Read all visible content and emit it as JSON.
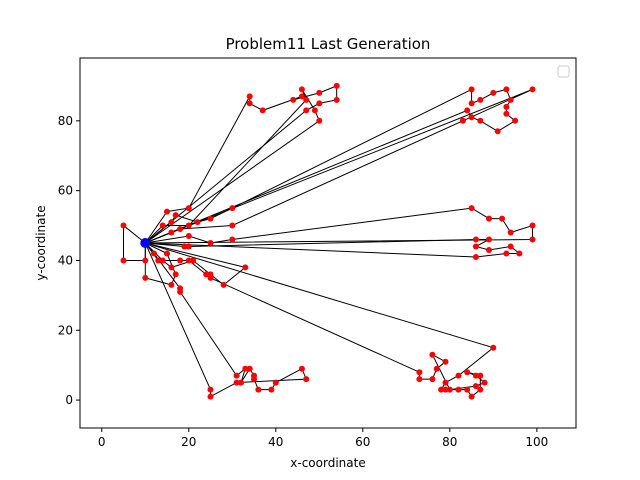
{
  "chart_data": {
    "type": "line",
    "title": "Problem11 Last Generation",
    "xlabel": "x-coordinate",
    "ylabel": "y-coordinate",
    "xlim": [
      -5,
      109
    ],
    "ylim": [
      -8,
      98
    ],
    "xticks": [
      0,
      20,
      40,
      60,
      80,
      100
    ],
    "yticks": [
      0,
      20,
      40,
      60,
      80
    ],
    "xtick_labels": [
      "0",
      "20",
      "40",
      "60",
      "80",
      "100"
    ],
    "ytick_labels": [
      "0",
      "20",
      "40",
      "60",
      "80"
    ],
    "grid": false,
    "legend": "top-right (empty)",
    "depot": {
      "x": 10,
      "y": 45,
      "color": "#0000ff"
    },
    "route_color": "#000000",
    "customer_color": "#ff0000",
    "routes": [
      [
        [
          10,
          45
        ],
        [
          15,
          54
        ],
        [
          20,
          55
        ],
        [
          34,
          87
        ],
        [
          34,
          85
        ],
        [
          37,
          83
        ],
        [
          46,
          87
        ],
        [
          44,
          86
        ],
        [
          50,
          88
        ],
        [
          54,
          90
        ],
        [
          54,
          86
        ],
        [
          50,
          85
        ],
        [
          47,
          83
        ],
        [
          10,
          45
        ]
      ],
      [
        [
          10,
          45
        ],
        [
          14,
          50
        ],
        [
          20,
          50
        ],
        [
          47,
          86
        ],
        [
          46,
          89
        ],
        [
          49,
          83
        ],
        [
          50,
          80
        ],
        [
          10,
          45
        ]
      ],
      [
        [
          10,
          45
        ],
        [
          16,
          51
        ],
        [
          17,
          53
        ],
        [
          22,
          51
        ],
        [
          25,
          52
        ],
        [
          30,
          55
        ],
        [
          85,
          89
        ],
        [
          85,
          85
        ],
        [
          87,
          86
        ],
        [
          90,
          88
        ],
        [
          93,
          89
        ],
        [
          94,
          86
        ],
        [
          93,
          84
        ],
        [
          93,
          82
        ],
        [
          95,
          80
        ],
        [
          91,
          77
        ],
        [
          87,
          80
        ],
        [
          85,
          81
        ],
        [
          84,
          83
        ],
        [
          10,
          45
        ]
      ],
      [
        [
          10,
          45
        ],
        [
          16,
          48
        ],
        [
          18,
          49
        ],
        [
          30,
          50
        ],
        [
          83,
          80
        ],
        [
          99,
          89
        ],
        [
          10,
          45
        ]
      ],
      [
        [
          10,
          45
        ],
        [
          20,
          47
        ],
        [
          25,
          45
        ],
        [
          30,
          46
        ],
        [
          85,
          55
        ],
        [
          89,
          52
        ],
        [
          92,
          52
        ],
        [
          94,
          48
        ],
        [
          99,
          50
        ],
        [
          99,
          46
        ],
        [
          10,
          45
        ]
      ],
      [
        [
          10,
          45
        ],
        [
          19,
          44
        ],
        [
          20,
          44
        ],
        [
          86,
          46
        ],
        [
          89,
          46
        ],
        [
          86,
          44
        ],
        [
          89,
          43
        ],
        [
          94,
          44
        ],
        [
          96,
          42
        ],
        [
          93,
          42
        ],
        [
          86,
          41
        ],
        [
          10,
          45
        ]
      ],
      [
        [
          10,
          45
        ],
        [
          14,
          40
        ],
        [
          16,
          38
        ],
        [
          21,
          40
        ],
        [
          25,
          36
        ],
        [
          28,
          33
        ],
        [
          33,
          38
        ],
        [
          10,
          45
        ]
      ],
      [
        [
          10,
          45
        ],
        [
          13,
          40
        ],
        [
          18,
          40
        ],
        [
          20,
          40
        ],
        [
          24,
          36
        ],
        [
          25,
          35
        ],
        [
          73,
          8
        ],
        [
          73,
          6
        ],
        [
          76,
          6
        ],
        [
          77,
          9
        ],
        [
          79,
          11
        ],
        [
          76,
          13
        ],
        [
          80,
          3
        ],
        [
          86,
          4
        ],
        [
          88,
          5
        ],
        [
          86,
          7
        ],
        [
          84,
          8
        ],
        [
          87,
          7
        ],
        [
          87,
          3
        ],
        [
          85,
          1
        ],
        [
          84,
          3
        ],
        [
          82,
          3
        ],
        [
          79,
          3
        ],
        [
          78,
          3
        ],
        [
          79,
          5
        ],
        [
          82,
          7
        ],
        [
          90,
          15
        ],
        [
          10,
          45
        ]
      ],
      [
        [
          10,
          45
        ],
        [
          12,
          42
        ],
        [
          18,
          32
        ],
        [
          18,
          31
        ],
        [
          31,
          7
        ],
        [
          33,
          9
        ],
        [
          32,
          5
        ],
        [
          34,
          9
        ],
        [
          35,
          7
        ],
        [
          35,
          6
        ],
        [
          36,
          3
        ],
        [
          39,
          3
        ],
        [
          40,
          5
        ],
        [
          46,
          9
        ],
        [
          47,
          6
        ],
        [
          31,
          5
        ],
        [
          25,
          1
        ],
        [
          25,
          3
        ],
        [
          10,
          45
        ]
      ],
      [
        [
          10,
          45
        ],
        [
          15,
          42
        ],
        [
          17,
          36
        ],
        [
          16,
          33
        ],
        [
          10,
          35
        ],
        [
          10,
          45
        ]
      ],
      [
        [
          10,
          45
        ],
        [
          5,
          50
        ],
        [
          5,
          40
        ],
        [
          10,
          40
        ],
        [
          10,
          45
        ]
      ]
    ]
  }
}
